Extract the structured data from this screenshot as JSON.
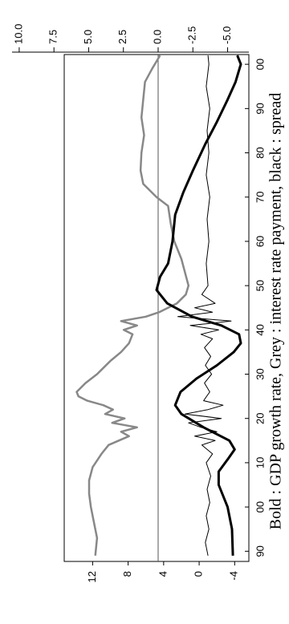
{
  "chart_data": {
    "type": "line",
    "caption": "Bold : GDP growth rate, Grey : interest rate payment, black : spread",
    "xlim": [
      1887.7,
      2002.2
    ],
    "xticks": [
      {
        "value": 1890,
        "label": "90"
      },
      {
        "value": 1900,
        "label": "00"
      },
      {
        "value": 1910,
        "label": "10"
      },
      {
        "value": 1920,
        "label": "20"
      },
      {
        "value": 1930,
        "label": "30"
      },
      {
        "value": 1940,
        "label": "40"
      },
      {
        "value": 1950,
        "label": "50"
      },
      {
        "value": 1960,
        "label": "60"
      },
      {
        "value": 1970,
        "label": "70"
      },
      {
        "value": 1980,
        "label": "80"
      },
      {
        "value": 1990,
        "label": "90"
      },
      {
        "value": 2000,
        "label": "00"
      }
    ],
    "ylim": [
      -5.6,
      15.2
    ],
    "yticks": [
      12,
      8,
      4,
      0,
      -4
    ],
    "y2lim": [
      -6.53,
      6.76
    ],
    "y2ticks": [
      {
        "value": 10,
        "label": "10.0"
      },
      7.5,
      {
        "value": 5,
        "label": "5.0"
      },
      2.5,
      {
        "value": 0,
        "label": "0.0"
      },
      -2.5,
      {
        "value": -5,
        "label": "-5.0"
      }
    ],
    "y2_reference_line": 0,
    "series": [
      {
        "color": "#888888",
        "width": 2.5,
        "x": [
          1889,
          1893,
          1897,
          1900,
          1903,
          1906,
          1909,
          1912,
          1914,
          1916,
          1917,
          1918,
          1919,
          1920,
          1921,
          1922,
          1923,
          1924,
          1925,
          1926,
          1928,
          1930,
          1933,
          1935,
          1937,
          1939,
          1940,
          1941,
          1942,
          1943,
          1944,
          1946,
          1948,
          1950,
          1953,
          1956,
          1960,
          1964,
          1968,
          1970,
          1973,
          1976,
          1980,
          1984,
          1988,
          1992,
          1996,
          1999,
          2002
        ],
        "values": [
          11.7,
          11.5,
          11.9,
          12.2,
          12.4,
          12.4,
          12.0,
          11.0,
          10.2,
          7.9,
          8.8,
          7.0,
          9.8,
          8.4,
          10.6,
          9.7,
          10.8,
          12.6,
          13.6,
          13.8,
          12.8,
          11.5,
          10.0,
          8.8,
          7.9,
          7.5,
          8.5,
          7.0,
          8.8,
          6.0,
          4.5,
          2.5,
          1.5,
          1.2,
          1.6,
          2.0,
          2.8,
          3.2,
          3.5,
          4.8,
          6.3,
          6.6,
          6.5,
          6.2,
          6.5,
          6.3,
          6.1,
          5.3,
          4.4
        ]
      },
      {
        "color": "#000000",
        "width": 1,
        "x": [
          1889,
          1892,
          1895,
          1898,
          1901,
          1904,
          1907,
          1910,
          1912,
          1914,
          1915,
          1916,
          1917,
          1918,
          1919,
          1920,
          1921,
          1922,
          1923,
          1924,
          1926,
          1928,
          1930,
          1932,
          1934,
          1936,
          1938,
          1939,
          1940,
          1941,
          1942,
          1943,
          1944,
          1945,
          1946,
          1948,
          1950,
          1955,
          1960,
          1965,
          1970,
          1975,
          1980,
          1985,
          1990,
          1995,
          2000,
          2002
        ],
        "values": [
          -1.0,
          -0.7,
          -1.1,
          -0.8,
          -1.2,
          -0.9,
          -1.3,
          -0.8,
          -1.5,
          -0.3,
          -1.8,
          0.5,
          -2.0,
          -0.2,
          1.2,
          -2.5,
          1.6,
          -1.0,
          -2.7,
          -0.5,
          -1.2,
          -0.6,
          -1.4,
          -0.7,
          -1.3,
          -0.6,
          -1.5,
          -0.2,
          -2.2,
          1.0,
          -3.6,
          2.4,
          -1.5,
          0.5,
          -1.8,
          -0.3,
          -1.0,
          -0.8,
          -1.1,
          -0.9,
          -1.2,
          -0.8,
          -1.1,
          -0.9,
          -1.2,
          -0.8,
          -1.1,
          -1.0
        ]
      },
      {
        "color": "#000000",
        "width": 3,
        "x": [
          1889,
          1895,
          1900,
          1905,
          1908,
          1911,
          1913,
          1915,
          1918,
          1921,
          1923,
          1926,
          1929,
          1932,
          1935,
          1937,
          1939,
          1941,
          1943,
          1946,
          1949,
          1952,
          1955,
          1960,
          1966,
          1971,
          1976,
          1982,
          1987,
          1992,
          1996,
          2000,
          2002
        ],
        "values": [
          -3.8,
          -3.7,
          -3.2,
          -2.2,
          -2.2,
          -3.3,
          -4.0,
          -3.4,
          -0.5,
          2.0,
          2.7,
          2.1,
          0.3,
          -2.0,
          -3.9,
          -4.7,
          -4.5,
          -2.5,
          0.8,
          3.6,
          4.8,
          4.4,
          3.5,
          3.0,
          2.7,
          1.8,
          0.7,
          -0.7,
          -2.0,
          -3.2,
          -4.1,
          -4.7,
          -4.3
        ]
      }
    ]
  }
}
